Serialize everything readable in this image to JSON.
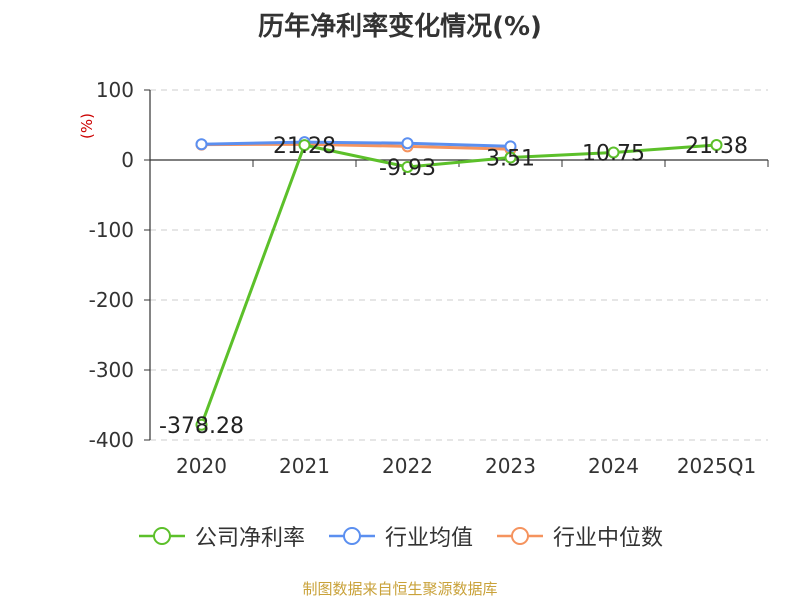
{
  "chart_data": {
    "type": "line",
    "title": "历年净利率变化情况(%)",
    "ylabel": "(%)",
    "categories": [
      "2020",
      "2021",
      "2022",
      "2023",
      "2024",
      "2025Q1"
    ],
    "ylim": [
      -400,
      100
    ],
    "yticks": [
      "100",
      "0",
      "-100",
      "-200",
      "-300",
      "-400"
    ],
    "grid": true,
    "legend_position": "bottom",
    "series": [
      {
        "name": "公司净利率",
        "color": "#5cc02a",
        "values": [
          -378.28,
          21.28,
          -9.93,
          3.51,
          10.75,
          21.38
        ],
        "labels": [
          "-378.28",
          "21.28",
          "-9.93",
          "3.51",
          "10.75",
          "21.38"
        ]
      },
      {
        "name": "行业均值",
        "color": "#5b8ff0",
        "values": [
          22.5,
          25.5,
          24.0,
          19.5,
          null,
          null
        ]
      },
      {
        "name": "行业中位数",
        "color": "#f5935e",
        "values": [
          22.0,
          22.5,
          19.5,
          15.5,
          null,
          null
        ]
      }
    ]
  },
  "footer": {
    "source": "制图数据来自恒生聚源数据库"
  }
}
